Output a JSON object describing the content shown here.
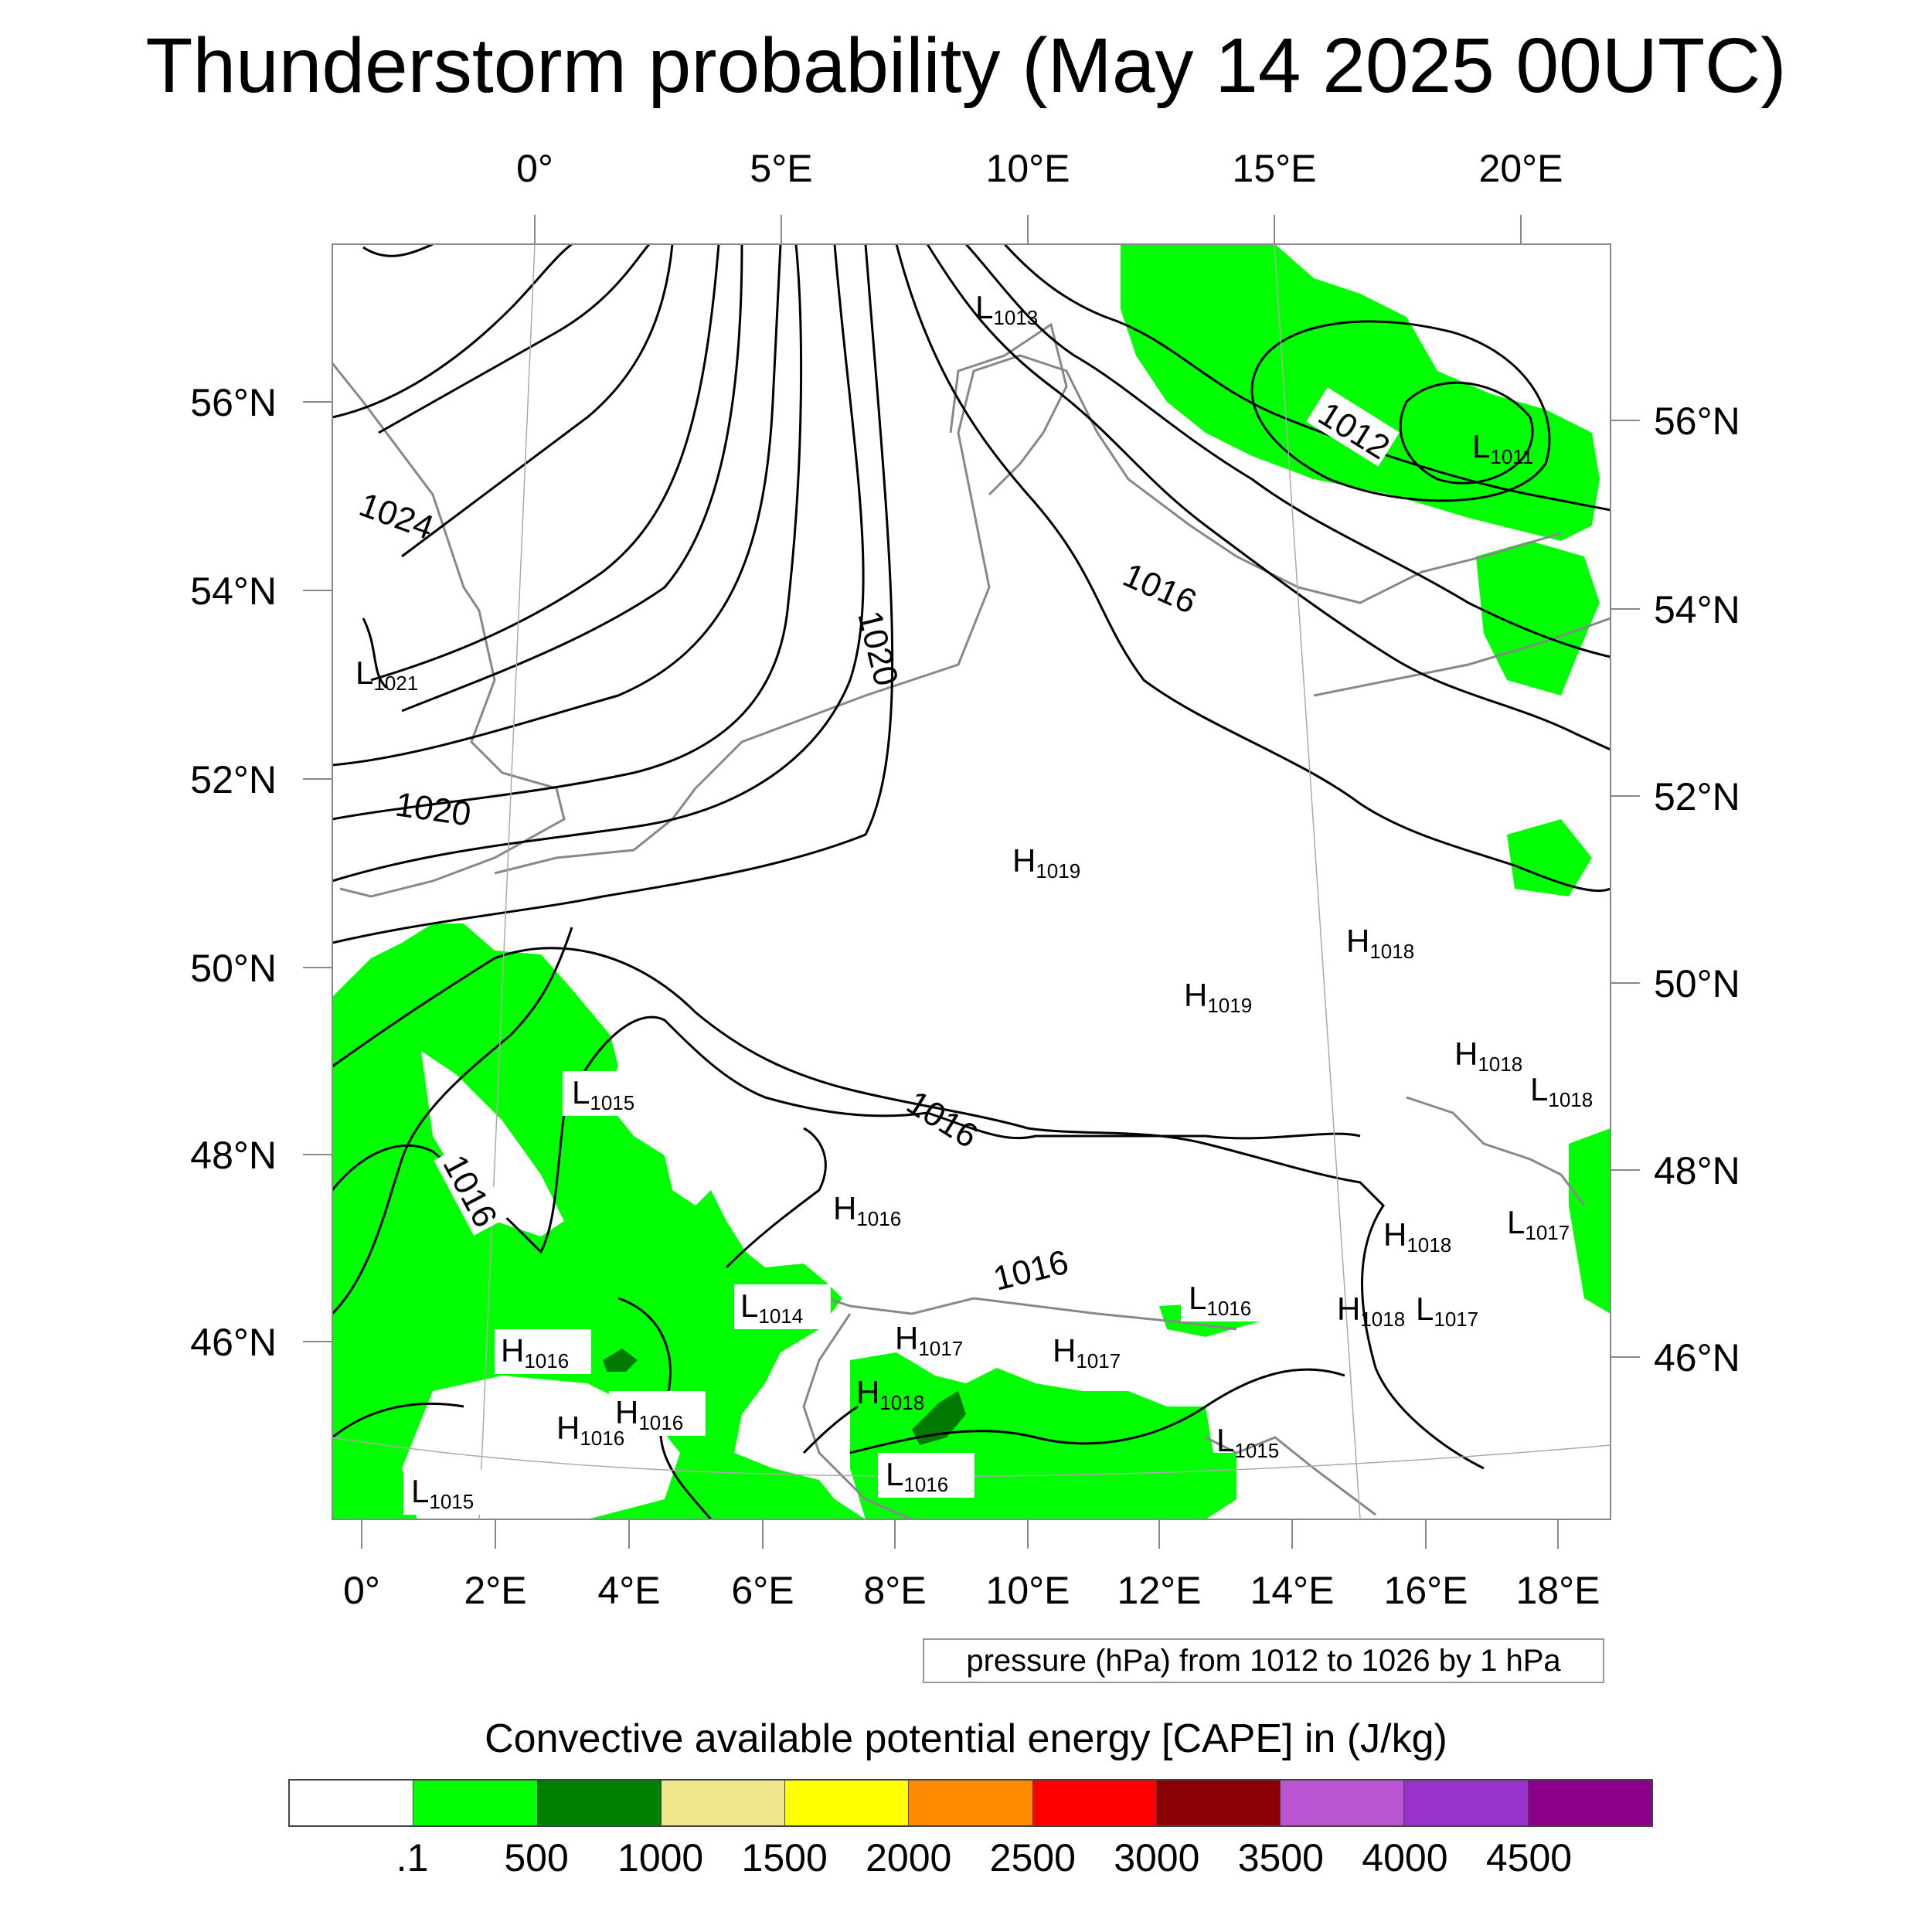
{
  "title": "Thunderstorm probability (May 14 2025 00UTC)",
  "top_lon_labels": [
    "0°",
    "5°E",
    "10°E",
    "15°E",
    "20°E"
  ],
  "bottom_lon_labels": [
    "0°",
    "2°E",
    "4°E",
    "6°E",
    "8°E",
    "10°E",
    "12°E",
    "14°E",
    "16°E",
    "18°E"
  ],
  "left_lat_labels": [
    "56°N",
    "54°N",
    "52°N",
    "50°N",
    "48°N",
    "46°N"
  ],
  "right_lat_labels": [
    "56°N",
    "54°N",
    "52°N",
    "50°N",
    "48°N",
    "46°N"
  ],
  "pressure_centers": [
    {
      "type": "L",
      "value": "1013"
    },
    {
      "type": "L",
      "value": "1011"
    },
    {
      "type": "L",
      "value": "1021"
    },
    {
      "type": "H",
      "value": "1019"
    },
    {
      "type": "H",
      "value": "1018"
    },
    {
      "type": "H",
      "value": "1019"
    },
    {
      "type": "H",
      "value": "1018"
    },
    {
      "type": "L",
      "value": "1018"
    },
    {
      "type": "L",
      "value": "1015"
    },
    {
      "type": "H",
      "value": "1016"
    },
    {
      "type": "H",
      "value": "1018"
    },
    {
      "type": "L",
      "value": "1017"
    },
    {
      "type": "L",
      "value": "1014"
    },
    {
      "type": "L",
      "value": "1016"
    },
    {
      "type": "H",
      "value": "1018"
    },
    {
      "type": "L",
      "value": "1017"
    },
    {
      "type": "H",
      "value": "1016"
    },
    {
      "type": "H",
      "value": "1017"
    },
    {
      "type": "H",
      "value": "1017"
    },
    {
      "type": "H",
      "value": "1016"
    },
    {
      "type": "H",
      "value": "1018"
    },
    {
      "type": "H",
      "value": "1016"
    },
    {
      "type": "L",
      "value": "1016"
    },
    {
      "type": "L",
      "value": "1015"
    },
    {
      "type": "L",
      "value": "1015"
    }
  ],
  "isobar_labels": [
    "1024",
    "1012",
    "1016",
    "1020",
    "1020",
    "1016",
    "1016",
    "1016"
  ],
  "pressure_note": "pressure (hPa) from 1012 to 1026 by 1 hPa",
  "colorbar": {
    "title": "Convective available potential energy [CAPE] in (J/kg)",
    "colors": [
      "#ffffff",
      "#00ff00",
      "#008000",
      "#f0e68c",
      "#ffff00",
      "#ff8c00",
      "#ff0000",
      "#8b0000",
      "#ba55d3",
      "#9932cc",
      "#8b008b"
    ],
    "labels": [
      ".1",
      "500",
      "1000",
      "1500",
      "2000",
      "2500",
      "3000",
      "3500",
      "4000",
      "4500"
    ]
  }
}
